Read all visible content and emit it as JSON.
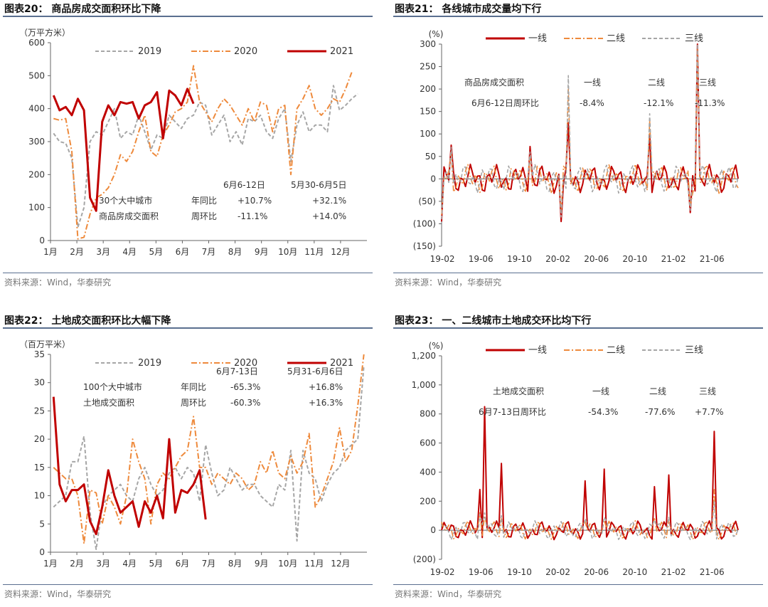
{
  "panels": {
    "c20": {
      "title": "图表20： 商品房成交面积环比下降",
      "source": "资料来源：Wind，华泰研究"
    },
    "c21": {
      "title": "图表21： 各线城市成交量均下行",
      "source": "资料来源：Wind，华泰研究"
    },
    "c22": {
      "title": "图表22： 土地成交面积环比大幅下降",
      "source": "资料来源：Wind，华泰研究"
    },
    "c23": {
      "title": "图表23： 一、二线城市土地成交环比均下行",
      "source": "资料来源：Wind，华泰研究"
    }
  },
  "colors": {
    "y2019": "#a6a6a6",
    "y2020": "#ee8a3c",
    "y2021": "#c00000",
    "tier1": "#c00000",
    "tier2": "#ee8a3c",
    "tier3": "#a6a6a6",
    "axis": "#666666"
  },
  "chart_data": [
    {
      "id": "c20",
      "type": "line",
      "ylabel": "（万平方米）",
      "ylim": [
        0,
        600
      ],
      "yticks": [
        "0",
        "100",
        "200",
        "300",
        "400",
        "500",
        "600"
      ],
      "xticks": [
        "1月",
        "2月",
        "3月",
        "4月",
        "5月",
        "6月",
        "7月",
        "8月",
        "9月",
        "10月",
        "11月",
        "12月"
      ],
      "x_unit": "week",
      "legend_position": "top",
      "series": [
        {
          "name": "2019",
          "style": "dash",
          "values": [
            325,
            300,
            295,
            250,
            40,
            100,
            300,
            330,
            320,
            360,
            400,
            310,
            330,
            320,
            380,
            330,
            275,
            320,
            310,
            380,
            360,
            340,
            370,
            380,
            420,
            410,
            320,
            350,
            380,
            300,
            330,
            290,
            370,
            360,
            380,
            330,
            310,
            370,
            400,
            240,
            350,
            390,
            330,
            350,
            350,
            330,
            470,
            395,
            410,
            430,
            445
          ]
        },
        {
          "name": "2020",
          "style": "dashdot",
          "values": [
            370,
            365,
            370,
            270,
            5,
            10,
            80,
            130,
            140,
            160,
            200,
            260,
            240,
            270,
            330,
            380,
            270,
            255,
            320,
            350,
            390,
            400,
            420,
            530,
            420,
            390,
            360,
            400,
            430,
            410,
            380,
            350,
            400,
            360,
            420,
            410,
            330,
            400,
            410,
            200,
            400,
            430,
            470,
            400,
            380,
            400,
            430,
            420,
            460,
            510
          ]
        },
        {
          "name": "2021",
          "style": "solid",
          "values": [
            440,
            395,
            405,
            380,
            430,
            395,
            130,
            90,
            360,
            410,
            380,
            420,
            415,
            420,
            370,
            410,
            420,
            450,
            310,
            455,
            440,
            410,
            460,
            415
          ]
        }
      ],
      "annotations": {
        "label1": "30个大中城市",
        "label2": "商品房成交面积",
        "col1": "6月6-12日",
        "col2": "5月30-6月5日",
        "row1": "年同比",
        "row2": "周环比",
        "v11": "+10.7%",
        "v12": "+32.1%",
        "v21": "-11.1%",
        "v22": "+14.0%"
      }
    },
    {
      "id": "c21",
      "type": "line",
      "ylabel": "(%)",
      "ylim": [
        -150,
        300
      ],
      "yticks": [
        "(150)",
        "(100)",
        "(50)",
        "0",
        "50",
        "100",
        "150",
        "200",
        "250",
        "300"
      ],
      "xticks": [
        "19-02",
        "19-06",
        "19-10",
        "20-02",
        "20-06",
        "20-10",
        "21-02",
        "21-06"
      ],
      "legend_position": "top",
      "series": [
        {
          "name": "一线",
          "style": "solid"
        },
        {
          "name": "二线",
          "style": "dashdot"
        },
        {
          "name": "三线",
          "style": "dash"
        }
      ],
      "spikes": [
        {
          "x": 0.0,
          "tier1": -95,
          "tier2": -80,
          "tier3": -90
        },
        {
          "x": 0.03,
          "tier1": 75,
          "tier2": 60,
          "tier3": 70
        },
        {
          "x": 0.3,
          "tier1": 72,
          "tier2": 50,
          "tier3": 60
        },
        {
          "x": 0.405,
          "tier1": -95,
          "tier2": -75,
          "tier3": -85
        },
        {
          "x": 0.43,
          "tier1": 125,
          "tier2": 200,
          "tier3": 230
        },
        {
          "x": 0.7,
          "tier1": 100,
          "tier2": 130,
          "tier3": 145
        },
        {
          "x": 0.84,
          "tier1": -75,
          "tier2": -60,
          "tier3": -70
        },
        {
          "x": 0.865,
          "tier1": 300,
          "tier2": 290,
          "tier3": 300
        }
      ],
      "annotations": {
        "label1": "商品房成交面积",
        "label2": "6月6-12日周环比",
        "h1": "一线",
        "h2": "二线",
        "h3": "三线",
        "v1": "-8.4%",
        "v2": "-12.1%",
        "v3": "-11.3%"
      }
    },
    {
      "id": "c22",
      "type": "line",
      "ylabel": "（百万平米）",
      "ylim": [
        0,
        35
      ],
      "yticks": [
        "0",
        "5",
        "10",
        "15",
        "20",
        "25",
        "30",
        "35"
      ],
      "xticks": [
        "1月",
        "2月",
        "3月",
        "4月",
        "5月",
        "6月",
        "7月",
        "8月",
        "9月",
        "10月",
        "11月",
        "12月"
      ],
      "x_unit": "week",
      "legend_position": "top",
      "series": [
        {
          "name": "2019",
          "style": "dash",
          "values": [
            8,
            9,
            10,
            16,
            16,
            20.5,
            7,
            0.5,
            8,
            10,
            11,
            12,
            10,
            9,
            13,
            15,
            12,
            10,
            11,
            14,
            15,
            13,
            15,
            14,
            9,
            19,
            14,
            10,
            11,
            15,
            13,
            11,
            12,
            12,
            10,
            9,
            8,
            12,
            11,
            18,
            2,
            18,
            14,
            13,
            9,
            12,
            14,
            15,
            18,
            19,
            20,
            33
          ]
        },
        {
          "name": "2020",
          "style": "dashdot",
          "values": [
            15,
            14,
            13,
            13,
            10,
            1.5,
            11,
            10.5,
            5,
            10,
            8,
            5,
            10,
            20,
            16,
            13,
            5,
            12,
            14,
            13,
            15,
            17,
            18,
            24,
            15,
            15,
            12,
            14,
            13,
            12,
            14,
            13,
            11,
            12,
            16,
            14,
            18,
            14,
            13,
            17,
            14,
            16,
            21,
            8,
            10,
            13,
            16,
            22,
            16,
            18,
            26,
            35
          ]
        },
        {
          "name": "2021",
          "style": "solid",
          "values": [
            27.5,
            12,
            9,
            11,
            11,
            12,
            5.5,
            3.2,
            8,
            14.5,
            10,
            7,
            8,
            9,
            4.5,
            9,
            7,
            10,
            6,
            20,
            7,
            11,
            10.5,
            12,
            14.5,
            5.8
          ]
        }
      ],
      "annotations": {
        "label1": "100个大中城市",
        "label2": "土地成交面积",
        "col1": "6月7-13日",
        "col2": "5月31-6月6日",
        "row1": "年同比",
        "row2": "周环比",
        "v11": "-65.3%",
        "v12": "+16.8%",
        "v21": "-60.3%",
        "v22": "+16.3%"
      }
    },
    {
      "id": "c23",
      "type": "line",
      "ylabel": "(%)",
      "ylim": [
        -200,
        1200
      ],
      "yticks": [
        "(200)",
        "0",
        "200",
        "400",
        "600",
        "800",
        "1,000",
        "1,200"
      ],
      "xticks": [
        "19-02",
        "19-06",
        "19-10",
        "20-02",
        "20-06",
        "20-10",
        "21-02",
        "21-06"
      ],
      "legend_position": "top",
      "series": [
        {
          "name": "一线",
          "style": "solid"
        },
        {
          "name": "二线",
          "style": "dashdot"
        },
        {
          "name": "三线",
          "style": "dash"
        }
      ],
      "spikes": [
        {
          "x": 0.145,
          "tier1": 850,
          "tier2": 100,
          "tier3": 120
        },
        {
          "x": 0.2,
          "tier1": 460,
          "tier2": 80,
          "tier3": 100
        },
        {
          "x": 0.13,
          "tier1": 280,
          "tier2": 120,
          "tier3": 110
        },
        {
          "x": 0.48,
          "tier1": 340,
          "tier2": 60,
          "tier3": 80
        },
        {
          "x": 0.55,
          "tier1": 420,
          "tier2": 70,
          "tier3": 90
        },
        {
          "x": 0.72,
          "tier1": 300,
          "tier2": 80,
          "tier3": 70
        },
        {
          "x": 0.77,
          "tier1": 380,
          "tier2": 60,
          "tier3": 90
        },
        {
          "x": 0.92,
          "tier1": 680,
          "tier2": 280,
          "tier3": 200
        }
      ],
      "annotations": {
        "label1": "土地成交面积",
        "label2": "6月7-13日周环比",
        "h1": "一线",
        "h2": "二线",
        "h3": "三线",
        "v1": "-54.3%",
        "v2": "-77.6%",
        "v3": "+7.7%"
      }
    }
  ]
}
